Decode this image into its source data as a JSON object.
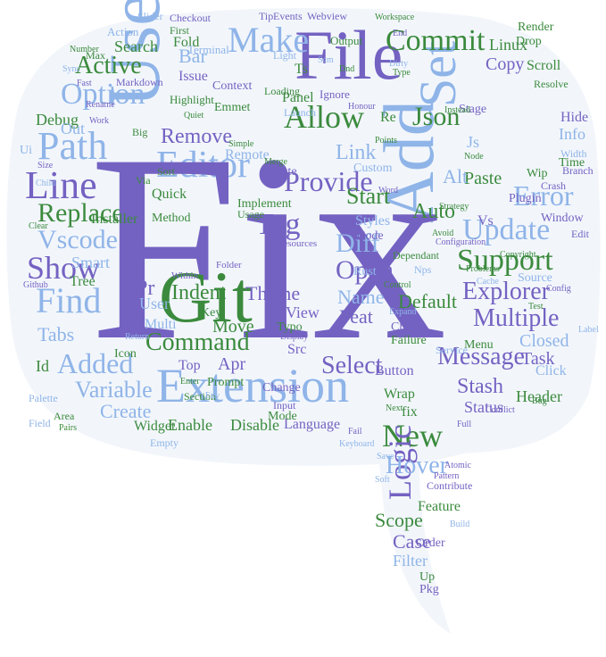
{
  "colors": {
    "background": "#ffffff",
    "bubble_fill": "#f2f6fb",
    "purple": "#7462c2",
    "light_blue": "#8fb4e8",
    "green": "#3b8a3d",
    "pale_blue": "#b9d0f0"
  },
  "words": {
    "fix": "Fix",
    "add": "Add",
    "git": "Git",
    "use": "Use",
    "file": "File",
    "extension": "Extension",
    "editor": "Editor",
    "make": "Make",
    "line": "Line",
    "path": "Path",
    "find": "Find",
    "show": "Show",
    "replace": "Replace",
    "vscode": "Vscode",
    "allow": "Allow",
    "provide": "Provide",
    "commit": "Commit",
    "json": "Json",
    "set": "Set",
    "support": "Support",
    "update": "Update",
    "error": "Error",
    "explorer": "Explorer",
    "multiple": "Multiple",
    "message": "Message",
    "new": "New",
    "logic": "Logic",
    "hover": "Hover",
    "select": "Select",
    "command": "Command",
    "added": "Added",
    "variable": "Variable",
    "create": "Create",
    "option": "Option",
    "active": "Active",
    "diff": "Diff",
    "open": "Open",
    "tag": "Tag",
    "remove": "Remove",
    "stash": "Stash",
    "theme": "Theme",
    "indent": "Indent",
    "bar": "Bar",
    "search": "Search",
    "fold": "Fold",
    "tabs": "Tabs",
    "debug": "Debug",
    "out": "Out",
    "installer": "Installer",
    "smart": "Smart",
    "start": "Start",
    "link": "Link",
    "auto": "Auto",
    "alt": "Alt",
    "paste": "Paste",
    "copy": "Copy",
    "linux": "Linux",
    "render": "Render",
    "scroll": "Scroll",
    "info": "Info",
    "hide": "Hide",
    "branch": "Branch",
    "time": "Time",
    "window": "Window",
    "task": "Task",
    "click": "Click",
    "closed": "Closed",
    "header": "Header",
    "default": "Default",
    "feat": "Feat",
    "name": "Name",
    "button": "Button",
    "wrap": "Wrap",
    "status": "Status",
    "scope": "Scope",
    "case": "Case",
    "filter": "Filter",
    "order": "Order",
    "feature": "Feature",
    "item": "Item",
    "language": "Language",
    "enable": "Enable",
    "disable": "Disable",
    "widget": "Widget",
    "prompt": "Prompt",
    "top": "Top",
    "apr": "Apr",
    "move": "Move",
    "pr": "Pr",
    "key": "Key",
    "icon": "Icon",
    "id": "Id",
    "user": "User",
    "quick": "Quick",
    "method": "Method",
    "implement": "Implement",
    "delete": "Delete",
    "remote": "Remote",
    "styles": "Styles",
    "custom": "Custom",
    "code": "Code",
    "view": "View",
    "src": "Src",
    "panel": "Panel",
    "ignore": "Ignore",
    "output": "Output",
    "issue": "Issue",
    "highlight": "Highlight",
    "terminal": "Terminal",
    "markdown": "Markdown",
    "action": "Action",
    "slider": "Slider",
    "checkout": "Checkout",
    "events": "Events",
    "webview": "Webview",
    "tip": "Tip",
    "workspace": "Workspace",
    "context": "Context",
    "loading": "Loading",
    "emmet": "Emmet",
    "ts": "Ts",
    "re": "Re",
    "ui": "Ui",
    "pkg": "Pkg",
    "up": "Up",
    "js": "Js",
    "vs": "Vs",
    "rust": "Rust",
    "wip": "Wip",
    "edit": "Edit",
    "crash": "Crash",
    "strategy": "Strategy",
    "configuration": "Configuration",
    "menu": "Menu",
    "contribute": "Contribute",
    "avoid": "Avoid",
    "source": "Source",
    "plugin": "Plugin",
    "drop": "Drop",
    "resolve": "Resolve",
    "first": "First",
    "sort": "Sort",
    "usage": "Usage",
    "change": "Change",
    "input": "Input",
    "display": "Display",
    "section": "Section",
    "empty": "Empty",
    "mode": "Mode",
    "multi": "Multi",
    "check": "Check",
    "failure": "Failure",
    "expand": "Expand",
    "control": "Control",
    "typo": "Typo",
    "resources": "Resources",
    "within": "Within",
    "folder": "Folder",
    "area": "Area",
    "palette": "Palette",
    "sync": "Sync",
    "max": "Max",
    "number": "Number",
    "width": "Width",
    "node": "Node",
    "points": "Points",
    "honour": "Honour",
    "instead": "Instead",
    "dnd": "Dnd",
    "stage": "Stage",
    "github": "Github",
    "merge": "Merge",
    "simple": "Simple",
    "big": "Big",
    "word": "Word",
    "size": "Size",
    "keyboard": "Keyboard",
    "save": "Save",
    "soft": "Soft",
    "fail": "Fail",
    "dependant": "Dependant",
    "next": "Next",
    "conflict": "Conflict",
    "bug": "Bug",
    "new_": "fix",
    "rename": "Rename",
    "work": "Work",
    "copyright": "Copyright",
    "light": "Light",
    "launch": "Launch",
    "dirty": "Dirty",
    "type": "Type",
    "scm": "Scm",
    "problems": "Problems",
    "cache": "Cache",
    "nps": "Nps",
    "full": "Full",
    "atomic": "Atomic",
    "pattern": "Pattern",
    "service": "Service",
    "enter": "Enter",
    "return": "Return",
    "via": "Via",
    "fast": "Fast",
    "build": "Build",
    "config": "Config",
    "label": "Label",
    "test": "Test",
    "clear": "Clear",
    "quiet": "Quiet",
    "end": "End",
    "child": "Child",
    "field": "Field",
    "pairs": "Pairs",
    "env": "Env",
    "tree": "Tree"
  }
}
